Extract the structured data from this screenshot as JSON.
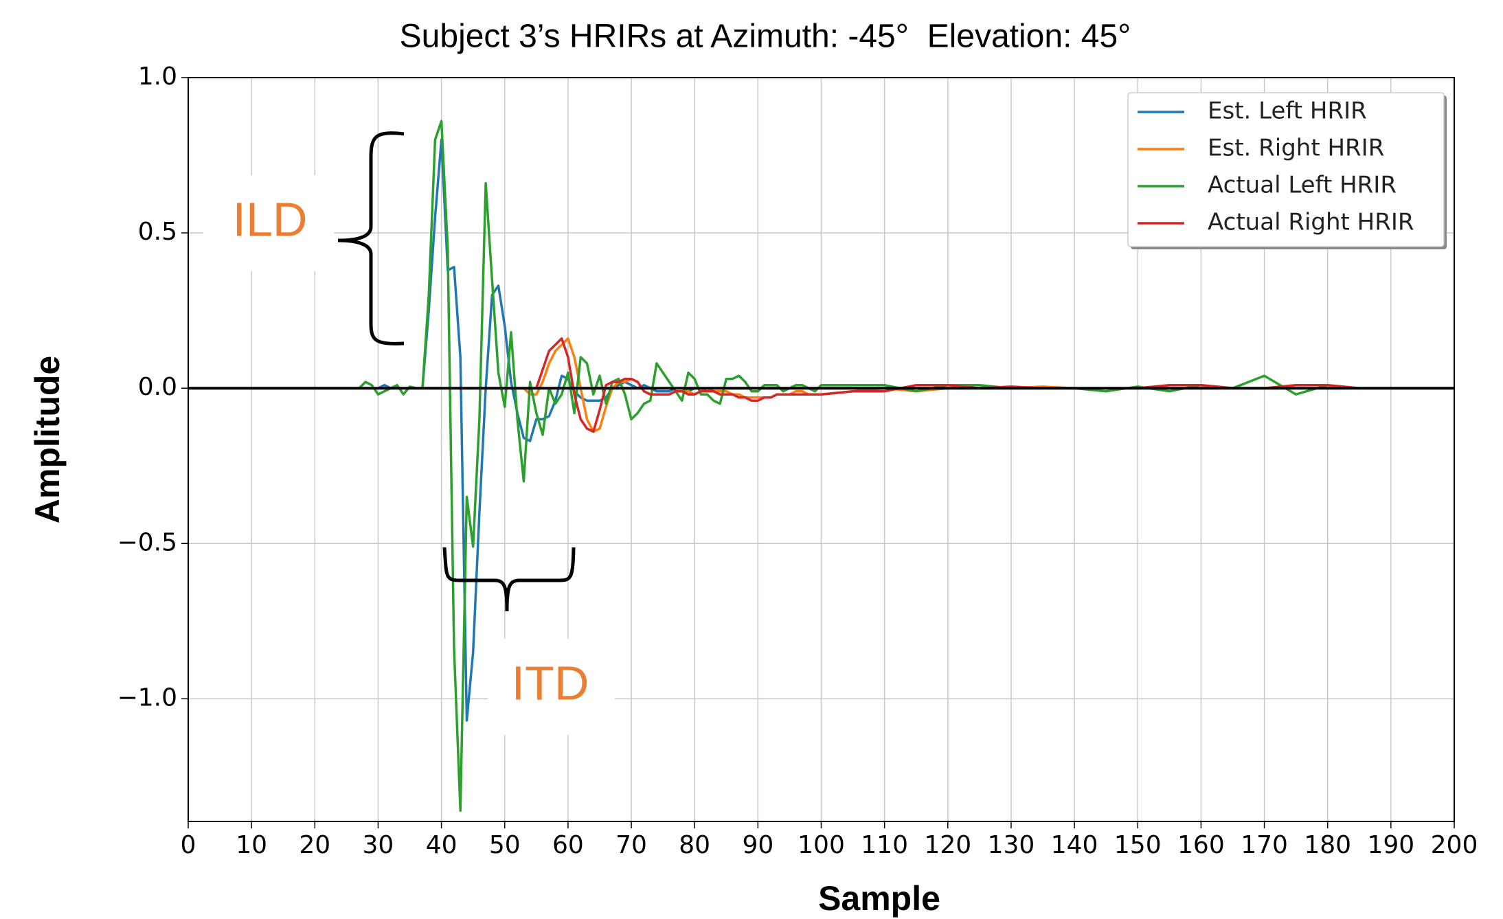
{
  "chart_data": {
    "type": "line",
    "title": "Subject 3’s HRIRs at Azimuth: -45°  Elevation: 45°",
    "x_label": "Sample",
    "y_label": "Amplitude",
    "x": [
      0,
      10,
      20,
      25,
      26,
      27,
      28,
      29,
      30,
      31,
      32,
      33,
      34,
      35,
      36,
      37,
      38,
      39,
      40,
      41,
      42,
      43,
      44,
      45,
      46,
      47,
      48,
      49,
      50,
      51,
      52,
      53,
      54,
      55,
      56,
      57,
      58,
      59,
      60,
      61,
      62,
      63,
      64,
      65,
      66,
      67,
      68,
      69,
      70,
      71,
      72,
      73,
      74,
      75,
      76,
      77,
      78,
      79,
      80,
      81,
      82,
      83,
      84,
      85,
      86,
      87,
      88,
      89,
      90,
      91,
      92,
      93,
      94,
      95,
      96,
      97,
      98,
      99,
      100,
      105,
      110,
      115,
      120,
      125,
      130,
      135,
      140,
      145,
      150,
      155,
      160,
      165,
      170,
      175,
      180,
      185,
      190,
      195,
      200
    ],
    "series": [
      {
        "name": "Est. Left HRIR",
        "color": "#1f77b4",
        "values": [
          0,
          0,
          0,
          0,
          0,
          0,
          0,
          0,
          0,
          0.01,
          0,
          0,
          0,
          0,
          0,
          0,
          0.25,
          0.55,
          0.8,
          0.38,
          0.39,
          0.1,
          -1.07,
          -0.85,
          -0.4,
          0,
          0.3,
          0.33,
          0.2,
          0.02,
          -0.08,
          -0.16,
          -0.17,
          -0.1,
          -0.1,
          -0.09,
          -0.04,
          0.04,
          0.03,
          -0.01,
          -0.03,
          -0.04,
          -0.04,
          -0.04,
          -0.03,
          0,
          0.01,
          0.02,
          0.01,
          0,
          0.01,
          0,
          -0.01,
          -0.01,
          -0.01,
          0,
          0,
          -0.01,
          0,
          0,
          0,
          0,
          0,
          0,
          0,
          0,
          0,
          0,
          0,
          0,
          0,
          0,
          0,
          0,
          0,
          0,
          0,
          0,
          0,
          0,
          0,
          0,
          0,
          0,
          0,
          0,
          0,
          0,
          0,
          0,
          0,
          0,
          0,
          0,
          0,
          0,
          0,
          0,
          0
        ]
      },
      {
        "name": "Est. Right HRIR",
        "color": "#ff7f0e",
        "values": [
          0,
          0,
          0,
          0,
          0,
          0,
          0,
          0,
          0,
          0,
          0,
          0,
          0,
          0,
          0,
          0,
          0,
          0,
          0,
          0,
          0,
          0,
          0,
          0,
          0,
          0,
          0,
          0,
          0,
          0,
          0,
          0,
          -0.02,
          -0.02,
          0.02,
          0.08,
          0.12,
          0.14,
          0.16,
          0.1,
          0,
          -0.1,
          -0.14,
          -0.13,
          -0.06,
          0,
          0.02,
          0.02,
          0.03,
          0.02,
          -0.01,
          -0.02,
          -0.02,
          -0.02,
          -0.02,
          -0.01,
          -0.01,
          -0.01,
          -0.02,
          -0.01,
          0,
          -0.01,
          -0.01,
          -0.01,
          -0.02,
          -0.02,
          -0.03,
          -0.03,
          -0.03,
          -0.03,
          -0.03,
          -0.02,
          -0.02,
          -0.02,
          -0.01,
          -0.01,
          -0.02,
          -0.02,
          -0.02,
          -0.01,
          0,
          -0.01,
          0,
          0,
          0,
          0.005,
          0,
          0,
          0,
          0.01,
          0.01,
          0,
          0,
          0.01,
          0.01,
          0,
          0,
          0,
          0
        ]
      },
      {
        "name": "Actual Left HRIR",
        "color": "#2ca02c",
        "values": [
          0,
          0,
          0,
          0,
          0,
          0,
          0.02,
          0.01,
          -0.02,
          -0.01,
          0,
          0.01,
          -0.02,
          0.005,
          0,
          0,
          0.3,
          0.8,
          0.86,
          0.45,
          -0.84,
          -1.36,
          -0.35,
          -0.51,
          -0.1,
          0.66,
          0.35,
          0.05,
          -0.06,
          0.18,
          -0.1,
          -0.3,
          0.02,
          -0.08,
          -0.15,
          0,
          -0.05,
          -0.02,
          0.05,
          -0.08,
          0.1,
          0.08,
          -0.02,
          0.04,
          -0.05,
          0.02,
          0.03,
          -0.02,
          -0.1,
          -0.08,
          -0.05,
          -0.04,
          0.08,
          0.05,
          0.02,
          -0.01,
          -0.04,
          0.05,
          0.03,
          -0.02,
          -0.02,
          -0.04,
          -0.05,
          0.03,
          0.03,
          0.04,
          0.02,
          -0.01,
          -0.01,
          0.01,
          0.01,
          0.01,
          -0.01,
          0,
          0.01,
          0.01,
          0,
          -0.01,
          0.01,
          0.01,
          0.01,
          -0.01,
          0.01,
          0.01,
          0,
          0,
          0,
          -0.01,
          0.005,
          -0.01,
          0.01,
          0,
          0.04,
          -0.02,
          0.01,
          0,
          0,
          0,
          0
        ]
      },
      {
        "name": "Actual Right HRIR",
        "color": "#d62728",
        "values": [
          0,
          0,
          0,
          0,
          0,
          0,
          0,
          0,
          0,
          0,
          0,
          0,
          0,
          0,
          0,
          0,
          0,
          0,
          0,
          0,
          0,
          0,
          0,
          0,
          0,
          0,
          0,
          0,
          0,
          0,
          0,
          0,
          0,
          0,
          0.06,
          0.12,
          0.14,
          0.16,
          0.1,
          -0.02,
          -0.1,
          -0.13,
          -0.14,
          -0.07,
          0.01,
          0.02,
          0.02,
          0.03,
          0.03,
          0.02,
          -0.01,
          -0.02,
          -0.02,
          -0.02,
          -0.02,
          -0.01,
          -0.01,
          -0.02,
          -0.02,
          -0.01,
          -0.01,
          -0.01,
          -0.02,
          -0.02,
          -0.02,
          -0.03,
          -0.03,
          -0.04,
          -0.04,
          -0.03,
          -0.03,
          -0.02,
          -0.02,
          -0.02,
          -0.02,
          -0.02,
          -0.02,
          -0.02,
          -0.02,
          -0.01,
          -0.01,
          0.01,
          0.01,
          0,
          0.005,
          0,
          0,
          0,
          0,
          0.01,
          0.01,
          0,
          0,
          0.01,
          0.01,
          0,
          0,
          0,
          0
        ]
      }
    ],
    "hline": 0,
    "xlim": [
      0,
      200
    ],
    "ylim": [
      -1.395,
      1.0
    ],
    "xticks": [
      0,
      10,
      20,
      30,
      40,
      50,
      60,
      70,
      80,
      90,
      100,
      110,
      120,
      130,
      140,
      150,
      160,
      170,
      180,
      190,
      200
    ],
    "yticks": [
      {
        "value": -1.0,
        "label": "−1.0"
      },
      {
        "value": -0.5,
        "label": "−0.5"
      },
      {
        "value": 0,
        "label": "0.0"
      },
      {
        "value": 0.5,
        "label": "0.5"
      },
      {
        "value": 1.0,
        "label": "1.0"
      }
    ],
    "grid": true,
    "legend": "upper right",
    "annotations": [
      "ILD",
      "ITD"
    ]
  }
}
